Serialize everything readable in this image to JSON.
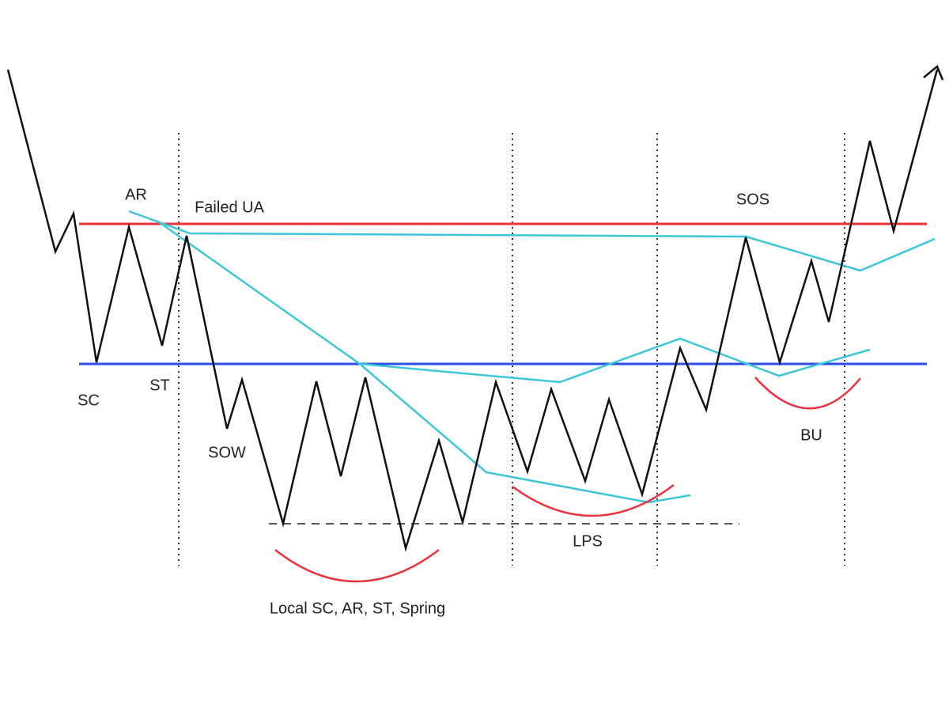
{
  "labels": {
    "ar": "AR",
    "failed_ua": "Failed UA",
    "sos": "SOS",
    "sc": "SC",
    "st": "ST",
    "sow": "SOW",
    "lps": "LPS",
    "bu": "BU",
    "local": "Local SC, AR, ST, Spring"
  }
}
